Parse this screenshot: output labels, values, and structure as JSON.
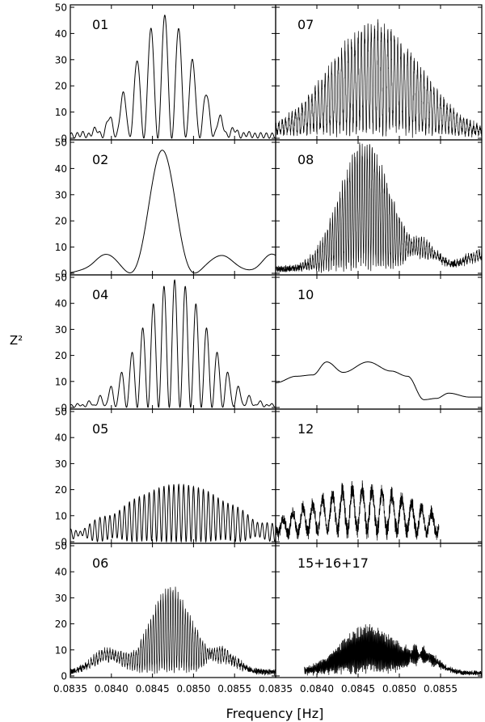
{
  "figure": {
    "ylabel": "Z²",
    "xlabel": "Frequency [Hz]"
  },
  "chart_data": {
    "type": "line",
    "grid": false,
    "layout": "5 rows x 2 columns of periodogram panels with shared axes",
    "ylim": [
      0,
      50
    ],
    "yticks": [
      "0",
      "10",
      "20",
      "30",
      "40",
      "50"
    ],
    "xlim": [
      0.0835,
      0.086
    ],
    "xticks_left": [
      "0.0835",
      "0.0840",
      "0.0845",
      "0.0850",
      "0.0855"
    ],
    "xticks_right": [
      "0.0835",
      "0.0840",
      "0.0845",
      "0.0850",
      "0.0855"
    ],
    "panels": [
      {
        "label": "01",
        "style": "clean",
        "center": 0.08465,
        "envelope_sigma": 0.00035,
        "peak": 47,
        "fringe_spacing": 0.00017,
        "floor": 2,
        "noise": 0,
        "data_range": [
          0.0835,
          0.086
        ]
      },
      {
        "label": "07",
        "style": "dense",
        "center": 0.0847,
        "envelope_sigma": 0.00055,
        "peak": 38,
        "fringe_spacing": 4e-05,
        "floor": 1,
        "noise": 5,
        "data_range": [
          0.0835,
          0.086
        ]
      },
      {
        "label": "02",
        "style": "sinc",
        "center": 0.08462,
        "peak": 47,
        "width": 0.0004,
        "side_lobes": [
          [
            0.0839,
            6.5
          ],
          [
            0.08537,
            6.5
          ],
          [
            0.08595,
            7
          ]
        ],
        "data_range": [
          0.0835,
          0.086
        ]
      },
      {
        "label": "08",
        "style": "dense",
        "center": 0.08458,
        "envelope_sigma": 0.0003,
        "peak": 45,
        "fringe_spacing": 3e-05,
        "floor": 1,
        "noise": 5,
        "side_lobes": [
          [
            0.0853,
            9
          ],
          [
            0.08597,
            7
          ]
        ],
        "data_range": [
          0.0835,
          0.086
        ]
      },
      {
        "label": "04",
        "style": "clean",
        "center": 0.08477,
        "envelope_sigma": 0.0004,
        "peak": 49,
        "fringe_spacing": 0.00013,
        "floor": 1,
        "noise": 0,
        "data_range": [
          0.0835,
          0.086
        ]
      },
      {
        "label": "10",
        "style": "smooth",
        "points": [
          [
            0.0835,
            9.5
          ],
          [
            0.08375,
            12
          ],
          [
            0.08395,
            12.5
          ],
          [
            0.08412,
            17.5
          ],
          [
            0.08432,
            13.5
          ],
          [
            0.08462,
            17.5
          ],
          [
            0.0849,
            14
          ],
          [
            0.0851,
            12
          ],
          [
            0.0853,
            3
          ],
          [
            0.08545,
            3.5
          ],
          [
            0.0856,
            5.5
          ],
          [
            0.08585,
            4
          ],
          [
            0.086,
            4
          ]
        ],
        "data_range": [
          0.0835,
          0.086
        ]
      },
      {
        "label": "05",
        "style": "clean",
        "center": 0.08482,
        "envelope_sigma": 0.00065,
        "peak": 22,
        "fringe_spacing": 6e-05,
        "floor": 3,
        "noise": 1,
        "data_range": [
          0.0835,
          0.086
        ]
      },
      {
        "label": "12",
        "style": "comb",
        "center": 0.08455,
        "envelope_sigma": 0.0007,
        "peak": 16,
        "fringe_spacing": 0.00012,
        "floor": 3,
        "noise": 4,
        "data_range": [
          0.0835,
          0.08548
        ]
      },
      {
        "label": "06",
        "style": "dense",
        "center": 0.08472,
        "envelope_sigma": 0.00025,
        "peak": 31,
        "fringe_spacing": 3e-05,
        "floor": 2,
        "noise": 2,
        "side_lobes": [
          [
            0.08395,
            9
          ],
          [
            0.08535,
            8
          ]
        ],
        "data_range": [
          0.0835,
          0.086
        ]
      },
      {
        "label": "15+16+17",
        "style": "dense",
        "center": 0.08462,
        "envelope_sigma": 0.00035,
        "peak": 15,
        "fringe_spacing": 1e-05,
        "floor": 1,
        "noise": 3,
        "side_lobes": [
          [
            0.0853,
            7
          ]
        ],
        "data_range": [
          0.08385,
          0.086
        ]
      }
    ]
  }
}
